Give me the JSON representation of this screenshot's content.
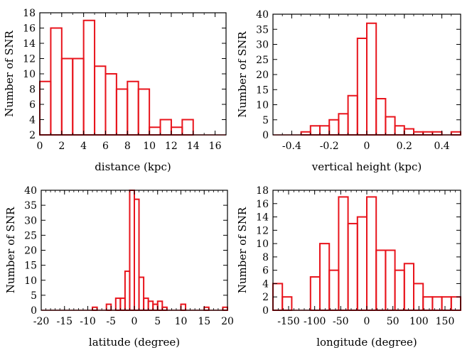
{
  "chart_data": [
    {
      "type": "bar",
      "subtype": "histogram",
      "xlabel": "distance (kpc)",
      "ylabel": "Number of SNR",
      "xlim": [
        0,
        17
      ],
      "ylim": [
        2,
        18
      ],
      "xticks": [
        0,
        2,
        4,
        6,
        8,
        10,
        12,
        14,
        16
      ],
      "yticks": [
        2,
        4,
        6,
        8,
        10,
        12,
        14,
        16,
        18
      ],
      "xtick_labels": [
        "0",
        "2",
        "4",
        "6",
        "8",
        "10",
        "12",
        "14",
        "16"
      ],
      "ytick_labels": [
        "2",
        "4",
        "6",
        "8",
        "10",
        "12",
        "14",
        "16",
        "18"
      ],
      "bins": [
        [
          0,
          1
        ],
        [
          1,
          2
        ],
        [
          2,
          3
        ],
        [
          3,
          4
        ],
        [
          4,
          5
        ],
        [
          5,
          6
        ],
        [
          6,
          7
        ],
        [
          7,
          8
        ],
        [
          8,
          9
        ],
        [
          9,
          10
        ],
        [
          10,
          11
        ],
        [
          11,
          12
        ],
        [
          12,
          13
        ],
        [
          13,
          14
        ]
      ],
      "values": [
        9,
        16,
        12,
        12,
        17,
        11,
        10,
        8,
        9,
        8,
        3,
        4,
        3,
        4
      ],
      "color": "#e8141c"
    },
    {
      "type": "bar",
      "subtype": "histogram",
      "xlabel": "vertical height (kpc)",
      "ylabel": "Number of SNR",
      "xlim": [
        -0.5,
        0.5
      ],
      "ylim": [
        0,
        40
      ],
      "xticks": [
        -0.4,
        -0.2,
        0,
        0.2,
        0.4
      ],
      "yticks": [
        0,
        5,
        10,
        15,
        20,
        25,
        30,
        35,
        40
      ],
      "xtick_labels": [
        "-0.4",
        "-0.2",
        "0",
        "0.2",
        "0.4"
      ],
      "ytick_labels": [
        "0",
        "5",
        "10",
        "15",
        "20",
        "25",
        "30",
        "35",
        "40"
      ],
      "bins": [
        [
          -0.5,
          -0.45
        ],
        [
          -0.45,
          -0.4
        ],
        [
          -0.4,
          -0.35
        ],
        [
          -0.35,
          -0.3
        ],
        [
          -0.3,
          -0.25
        ],
        [
          -0.25,
          -0.2
        ],
        [
          -0.2,
          -0.15
        ],
        [
          -0.15,
          -0.1
        ],
        [
          -0.1,
          -0.05
        ],
        [
          -0.05,
          0
        ],
        [
          0,
          0.05
        ],
        [
          0.05,
          0.1
        ],
        [
          0.1,
          0.15
        ],
        [
          0.15,
          0.2
        ],
        [
          0.2,
          0.25
        ],
        [
          0.25,
          0.3
        ],
        [
          0.3,
          0.35
        ],
        [
          0.35,
          0.4
        ],
        [
          0.4,
          0.45
        ],
        [
          0.45,
          0.5
        ]
      ],
      "values": [
        0,
        0,
        0,
        1,
        3,
        3,
        5,
        7,
        13,
        32,
        37,
        12,
        6,
        3,
        2,
        1,
        1,
        1,
        0,
        1
      ],
      "color": "#e8141c"
    },
    {
      "type": "bar",
      "subtype": "histogram",
      "xlabel": "latitude (degree)",
      "ylabel": "Number of SNR",
      "xlim": [
        -20,
        20
      ],
      "ylim": [
        0,
        40
      ],
      "xticks": [
        -20,
        -15,
        -10,
        -5,
        0,
        5,
        10,
        15,
        20
      ],
      "yticks": [
        0,
        5,
        10,
        15,
        20,
        25,
        30,
        35,
        40
      ],
      "xtick_labels": [
        "-20",
        "-15",
        "-10",
        "-5",
        "0",
        "5",
        "10",
        "15",
        "20"
      ],
      "ytick_labels": [
        "0",
        "5",
        "10",
        "15",
        "20",
        "25",
        "30",
        "35",
        "40"
      ],
      "bins": [
        [
          -9,
          -8
        ],
        [
          -6,
          -5
        ],
        [
          -4,
          -3
        ],
        [
          -3,
          -2
        ],
        [
          -2,
          -1
        ],
        [
          -1,
          0
        ],
        [
          0,
          1
        ],
        [
          1,
          2
        ],
        [
          2,
          3
        ],
        [
          3,
          4
        ],
        [
          4,
          5
        ],
        [
          5,
          6
        ],
        [
          6,
          7
        ],
        [
          10,
          11
        ],
        [
          15,
          16
        ],
        [
          19,
          20
        ]
      ],
      "values": [
        1,
        2,
        4,
        4,
        13,
        40,
        37,
        11,
        4,
        3,
        2,
        3,
        1,
        2,
        1,
        1
      ],
      "color": "#e8141c"
    },
    {
      "type": "bar",
      "subtype": "histogram",
      "xlabel": "longitude (degree)",
      "ylabel": "Number of SNR",
      "xlim": [
        -180,
        180
      ],
      "ylim": [
        0,
        18
      ],
      "xticks": [
        -150,
        -100,
        -50,
        0,
        50,
        100,
        150
      ],
      "yticks": [
        0,
        2,
        4,
        6,
        8,
        10,
        12,
        14,
        16,
        18
      ],
      "xtick_labels": [
        "-150",
        "-100",
        "-50",
        "0",
        "50",
        "100",
        "150"
      ],
      "ytick_labels": [
        "0",
        "2",
        "4",
        "6",
        "8",
        "10",
        "12",
        "14",
        "16",
        "18"
      ],
      "bins": [
        [
          -180,
          -162
        ],
        [
          -162,
          -144
        ],
        [
          -144,
          -126
        ],
        [
          -126,
          -108
        ],
        [
          -108,
          -90
        ],
        [
          -90,
          -72
        ],
        [
          -72,
          -54
        ],
        [
          -54,
          -36
        ],
        [
          -36,
          -18
        ],
        [
          -18,
          0
        ],
        [
          0,
          18
        ],
        [
          18,
          36
        ],
        [
          36,
          54
        ],
        [
          54,
          72
        ],
        [
          72,
          90
        ],
        [
          90,
          108
        ],
        [
          108,
          126
        ],
        [
          126,
          144
        ],
        [
          144,
          162
        ],
        [
          162,
          180
        ]
      ],
      "values": [
        4,
        2,
        0,
        0,
        5,
        10,
        6,
        17,
        13,
        14,
        17,
        9,
        9,
        6,
        7,
        4,
        2,
        2,
        2,
        2
      ],
      "color": "#e8141c"
    }
  ]
}
